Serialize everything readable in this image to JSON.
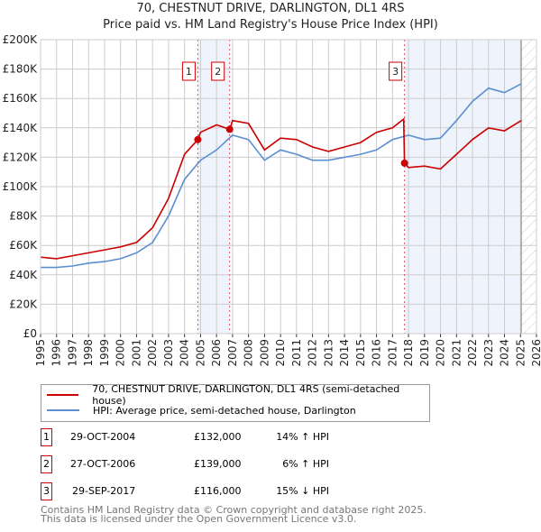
{
  "chart_data": {
    "type": "line",
    "title": "70, CHESTNUT DRIVE, DARLINGTON, DL1 4RS",
    "subtitle": "Price paid vs. HM Land Registry's House Price Index (HPI)",
    "xlim": [
      1995,
      2026
    ],
    "ylim": [
      0,
      200000
    ],
    "x_ticks": [
      "1995",
      "1996",
      "1997",
      "1998",
      "1999",
      "2000",
      "2001",
      "2002",
      "2003",
      "2004",
      "2005",
      "2006",
      "2007",
      "2008",
      "2009",
      "2010",
      "2011",
      "2012",
      "2013",
      "2014",
      "2015",
      "2016",
      "2017",
      "2018",
      "2019",
      "2020",
      "2021",
      "2022",
      "2023",
      "2024",
      "2025",
      "2026"
    ],
    "y_ticks": [
      {
        "v": 0,
        "label": "£0"
      },
      {
        "v": 20000,
        "label": "£20K"
      },
      {
        "v": 40000,
        "label": "£40K"
      },
      {
        "v": 60000,
        "label": "£60K"
      },
      {
        "v": 80000,
        "label": "£80K"
      },
      {
        "v": 100000,
        "label": "£100K"
      },
      {
        "v": 120000,
        "label": "£120K"
      },
      {
        "v": 140000,
        "label": "£140K"
      },
      {
        "v": 160000,
        "label": "£160K"
      },
      {
        "v": 180000,
        "label": "£180K"
      },
      {
        "v": 200000,
        "label": "£200K"
      }
    ],
    "grid": true,
    "forecast_from": 2025.05,
    "series": [
      {
        "name": "70, CHESTNUT DRIVE, DARLINGTON, DL1 4RS (semi-detached house)",
        "color": "#cc0000",
        "x": [
          1995,
          1996,
          1997,
          1998,
          1999,
          2000,
          2001,
          2002,
          2003,
          2004,
          2004.83,
          2005,
          2006,
          2006.82,
          2007,
          2008,
          2009,
          2010,
          2011,
          2012,
          2013,
          2014,
          2015,
          2016,
          2017,
          2017.7,
          2017.75,
          2018,
          2019,
          2020,
          2021,
          2022,
          2023,
          2024,
          2025.05
        ],
        "y": [
          52000,
          51000,
          53000,
          55000,
          57000,
          59000,
          62000,
          72000,
          92000,
          122000,
          132000,
          137000,
          142000,
          139000,
          145000,
          143000,
          125000,
          133000,
          132000,
          127000,
          124000,
          127000,
          130000,
          137000,
          140000,
          146000,
          116000,
          113000,
          114000,
          112000,
          122000,
          132000,
          140000,
          138000,
          145000
        ]
      },
      {
        "name": "HPI: Average price, semi-detached house, Darlington",
        "color": "#5b8fd0",
        "x": [
          1995,
          1996,
          1997,
          1998,
          1999,
          2000,
          2001,
          2002,
          2003,
          2004,
          2005,
          2006,
          2007,
          2008,
          2009,
          2010,
          2011,
          2012,
          2013,
          2014,
          2015,
          2016,
          2017,
          2018,
          2019,
          2020,
          2021,
          2022,
          2023,
          2024,
          2025.05
        ],
        "y": [
          45000,
          45000,
          46000,
          48000,
          49000,
          51000,
          55000,
          62000,
          80000,
          105000,
          118000,
          125000,
          135000,
          132000,
          118000,
          125000,
          122000,
          118000,
          118000,
          120000,
          122000,
          125000,
          132000,
          135000,
          132000,
          133000,
          145000,
          158000,
          167000,
          164000,
          170000
        ]
      }
    ],
    "sales": [
      {
        "id": "1",
        "x": 2004.83,
        "y": 132000,
        "date": "29-OCT-2004",
        "price": "£132,000",
        "hpi": "14% ↑ HPI"
      },
      {
        "id": "2",
        "x": 2006.82,
        "y": 139000,
        "date": "27-OCT-2006",
        "price": "£139,000",
        "hpi": "6% ↑ HPI"
      },
      {
        "id": "3",
        "x": 2017.75,
        "y": 116000,
        "date": "29-SEP-2017",
        "price": "£116,000",
        "hpi": "15% ↓ HPI"
      }
    ]
  },
  "footer": [
    "Contains HM Land Registry data © Crown copyright and database right 2025.",
    "This data is licensed under the Open Government Licence v3.0."
  ]
}
